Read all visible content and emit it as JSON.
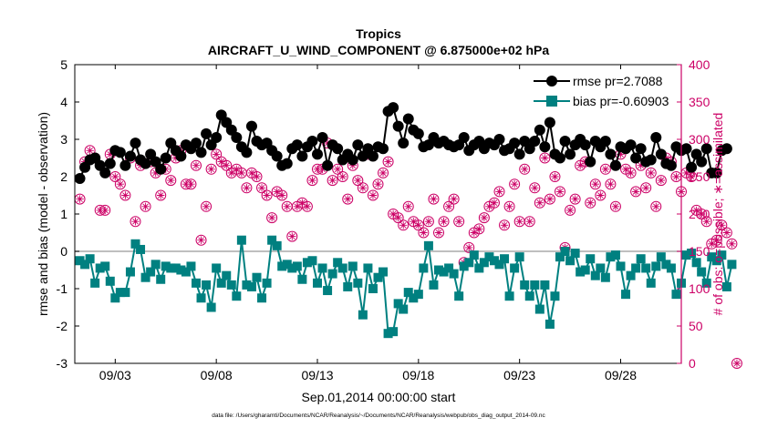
{
  "chart_data": {
    "type": "line",
    "title": "Tropics",
    "subtitle": "AIRCRAFT_U_WIND_COMPONENT @ 6.875000e+02 hPa",
    "xlabel": "Sep.01,2014 00:00:00 start",
    "ylabel_left": "rmse and bias (model - observation)",
    "ylabel_right": "# of obs: o=possible; ∗=assimilated",
    "footnote": "data file: /Users/gharamti/Documents/NCAR/Reanalysis/~/Documents/NCAR/Reanalysis/webpub/obs_diag_output_2014-09.nc",
    "xlim": [
      1,
      31
    ],
    "ylim_left": [
      -3,
      5
    ],
    "ylim_right": [
      0,
      400
    ],
    "x_ticks": [
      3,
      8,
      13,
      18,
      23,
      28
    ],
    "x_tick_labels": [
      "09/03",
      "09/08",
      "09/13",
      "09/18",
      "09/23",
      "09/28"
    ],
    "y_ticks_left": [
      -3,
      -2,
      -1,
      0,
      1,
      2,
      3,
      4,
      5
    ],
    "y_tick_labels_left": [
      "-3",
      "-2",
      "-1",
      "0",
      "1",
      "2",
      "3",
      "4",
      "5"
    ],
    "y_ticks_right": [
      0,
      50,
      100,
      150,
      200,
      250,
      300,
      350,
      400
    ],
    "y_tick_labels_right": [
      "0",
      "50",
      "100",
      "150",
      "200",
      "250",
      "300",
      "350",
      "400"
    ],
    "legend": [
      {
        "name": "rmse pr=2.7088",
        "marker": "circle",
        "color": "#000000"
      },
      {
        "name": "bias pr=-0.60903",
        "marker": "square",
        "color": "#008080"
      }
    ],
    "legend_position": "top-right",
    "colors": {
      "rmse": "#000000",
      "bias": "#008080",
      "obs": "#cc0066",
      "zero_line": "#aaaaaa"
    },
    "series": [
      {
        "name": "rmse",
        "x_start": 1.25,
        "x_step": 0.25,
        "values": [
          1.95,
          2.25,
          2.45,
          2.5,
          2.3,
          2.1,
          2.35,
          2.7,
          2.65,
          2.3,
          2.55,
          2.9,
          2.45,
          2.35,
          2.6,
          2.4,
          2.2,
          2.5,
          2.9,
          2.7,
          2.55,
          2.85,
          2.75,
          2.9,
          2.65,
          3.15,
          2.85,
          3.05,
          3.65,
          3.45,
          3.25,
          3.05,
          2.8,
          2.65,
          3.35,
          2.95,
          2.85,
          2.9,
          2.7,
          2.55,
          2.3,
          2.35,
          2.75,
          2.85,
          2.55,
          2.8,
          2.95,
          2.6,
          3.05,
          2.3,
          2.85,
          2.75,
          2.45,
          2.6,
          2.45,
          2.85,
          2.55,
          2.75,
          2.55,
          2.8,
          2.75,
          3.75,
          3.85,
          3.35,
          2.9,
          3.55,
          3.25,
          3.15,
          2.8,
          2.85,
          3.05,
          2.9,
          2.95,
          2.85,
          2.8,
          2.85,
          3.05,
          2.7,
          2.85,
          2.95,
          2.75,
          2.9,
          2.85,
          3.0,
          2.7,
          2.75,
          2.9,
          2.6,
          2.95,
          2.75,
          2.95,
          3.25,
          2.8,
          3.45,
          2.6,
          2.5,
          2.95,
          2.6,
          2.85,
          3.0,
          2.85,
          2.4,
          2.95,
          2.8,
          2.95,
          2.6,
          2.3,
          2.8,
          2.75,
          2.85,
          2.5,
          2.75,
          2.4,
          2.45,
          3.05,
          2.6,
          2.35,
          2.3,
          2.8,
          2.7,
          2.75,
          2.25,
          2.6,
          2.4,
          2.75,
          2.1,
          2.1,
          2.7,
          2.75
        ]
      },
      {
        "name": "bias",
        "x_start": 1.25,
        "x_step": 0.25,
        "values": [
          -0.25,
          -0.35,
          -0.2,
          -0.85,
          -0.45,
          -0.4,
          -0.8,
          -1.25,
          -1.1,
          -1.1,
          -0.55,
          0.2,
          0.05,
          -0.7,
          -0.55,
          -0.35,
          -0.75,
          -0.4,
          -0.45,
          -0.45,
          -0.5,
          -0.55,
          -0.4,
          -0.85,
          -1.25,
          -0.9,
          -1.5,
          -0.45,
          -0.85,
          -0.65,
          -0.9,
          -1.2,
          0.3,
          -0.9,
          -0.95,
          -0.7,
          -1.25,
          -0.85,
          0.3,
          0.15,
          -0.4,
          -0.35,
          -0.45,
          -0.4,
          -0.75,
          -0.3,
          -0.25,
          -0.85,
          -0.45,
          -1.05,
          -0.6,
          -0.3,
          -0.45,
          -0.95,
          -0.4,
          -0.85,
          -1.7,
          -0.45,
          -1.0,
          -0.7,
          -0.55,
          -2.2,
          -2.15,
          -1.4,
          -1.55,
          -1.1,
          -1.25,
          -1.15,
          -0.45,
          0.15,
          -0.9,
          -0.5,
          -0.55,
          -0.45,
          -0.6,
          -1.2,
          -0.4,
          -0.3,
          -0.1,
          -0.45,
          -0.3,
          -0.15,
          -0.25,
          -0.35,
          -0.2,
          -1.2,
          -0.45,
          -0.15,
          -0.9,
          -1.2,
          -0.9,
          -1.55,
          -0.9,
          -1.95,
          -1.2,
          -0.15,
          0.0,
          -0.25,
          -0.05,
          -0.55,
          -0.5,
          -0.2,
          -0.65,
          -0.45,
          -0.7,
          -0.15,
          -0.1,
          -0.4,
          -1.15,
          -0.65,
          -0.45,
          -0.2,
          -0.45,
          -0.85,
          -0.4,
          -0.15,
          -0.35,
          -0.45,
          -1.15,
          -0.85,
          -0.1,
          -0.05,
          -0.3,
          -0.55,
          -0.85,
          -0.15,
          -0.25,
          -0.1,
          -0.95,
          -0.35
        ]
      },
      {
        "name": "obs_possible",
        "x_start": 1.25,
        "x_step": 0.25,
        "values": [
          220,
          270,
          285,
          275,
          205,
          205,
          280,
          250,
          240,
          225,
          275,
          190,
          265,
          210,
          270,
          255,
          225,
          260,
          245,
          275,
          285,
          240,
          240,
          265,
          165,
          210,
          260,
          280,
          270,
          265,
          255,
          260,
          255,
          235,
          255,
          250,
          235,
          225,
          195,
          230,
          225,
          210,
          170,
          210,
          215,
          210,
          245,
          260,
          260,
          295,
          245,
          260,
          250,
          220,
          265,
          245,
          235,
          280,
          225,
          240,
          255,
          270,
          200,
          195,
          185,
          210,
          190,
          185,
          175,
          190,
          220,
          175,
          190,
          210,
          220,
          190,
          135,
          155,
          175,
          180,
          195,
          210,
          215,
          230,
          185,
          210,
          240,
          190,
          260,
          190,
          235,
          215,
          275,
          220,
          250,
          230,
          155,
          205,
          220,
          265,
          270,
          215,
          240,
          225,
          260,
          240,
          210,
          280,
          260,
          255,
          230,
          265,
          235,
          255,
          210,
          245,
          275,
          270,
          250,
          230,
          255,
          250,
          205,
          200,
          190,
          160,
          165,
          185,
          175,
          160,
          0
        ]
      },
      {
        "name": "obs_assimilated",
        "x_start": 1.25,
        "x_step": 0.25,
        "values": [
          220,
          270,
          285,
          275,
          205,
          205,
          280,
          250,
          240,
          225,
          275,
          190,
          265,
          210,
          270,
          255,
          225,
          260,
          245,
          275,
          285,
          240,
          240,
          265,
          165,
          210,
          260,
          280,
          270,
          265,
          255,
          260,
          255,
          235,
          255,
          250,
          235,
          225,
          195,
          230,
          225,
          210,
          170,
          210,
          215,
          210,
          245,
          260,
          260,
          295,
          245,
          260,
          250,
          220,
          265,
          245,
          235,
          280,
          225,
          240,
          255,
          270,
          200,
          195,
          185,
          210,
          190,
          185,
          175,
          190,
          220,
          175,
          190,
          210,
          220,
          190,
          135,
          155,
          175,
          180,
          195,
          210,
          215,
          230,
          185,
          210,
          240,
          190,
          260,
          190,
          235,
          215,
          275,
          220,
          250,
          230,
          155,
          205,
          220,
          265,
          270,
          215,
          240,
          225,
          260,
          240,
          210,
          280,
          260,
          255,
          230,
          265,
          235,
          255,
          210,
          245,
          275,
          270,
          250,
          230,
          255,
          250,
          205,
          200,
          190,
          160,
          165,
          185,
          175,
          160,
          0
        ]
      }
    ]
  }
}
